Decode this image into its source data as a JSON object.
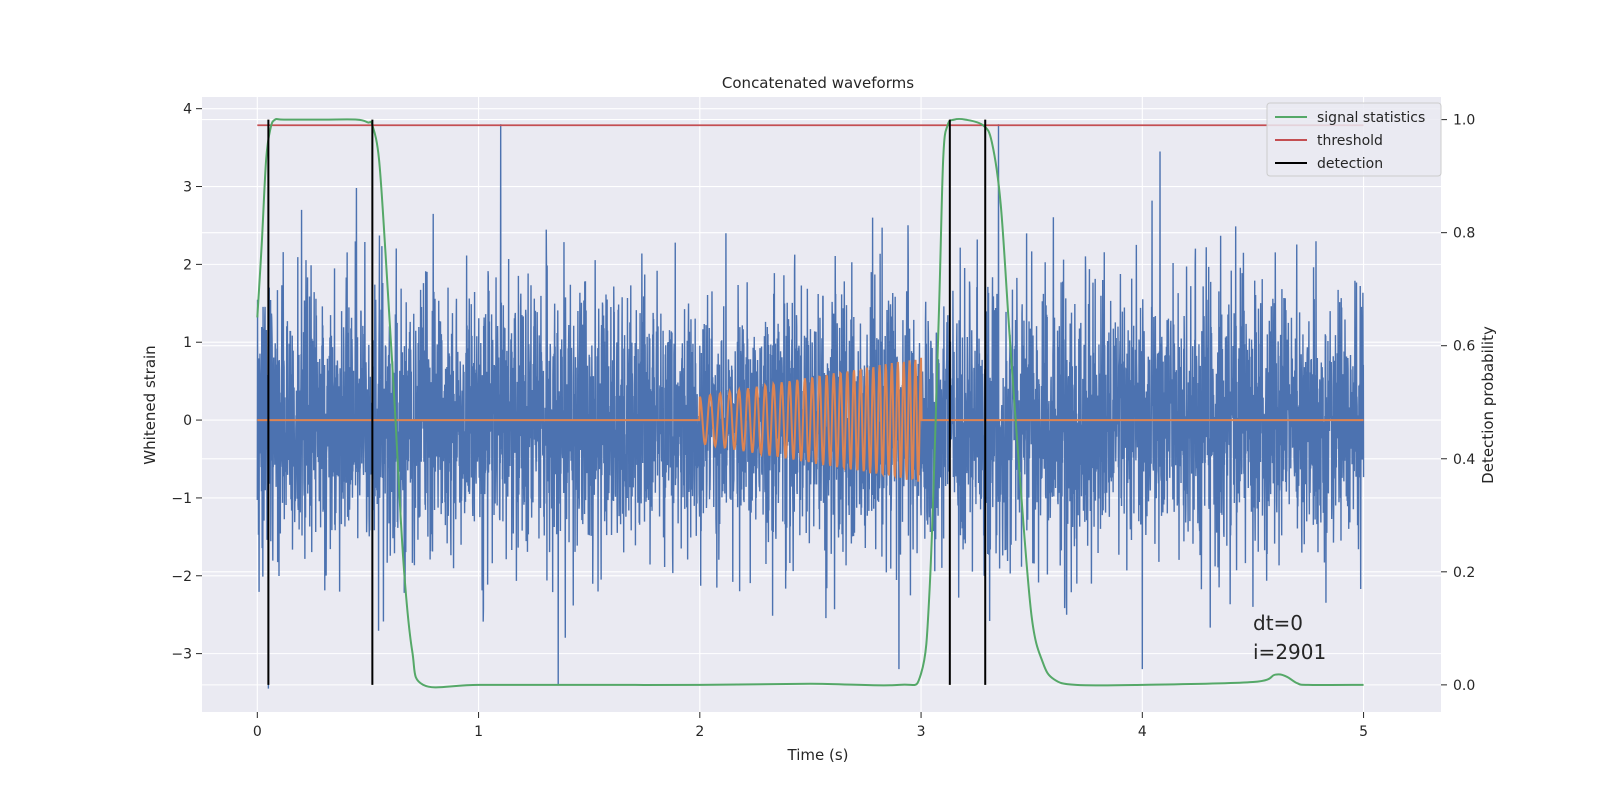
{
  "chart_data": {
    "type": "line",
    "title": "Concatenated waveforms",
    "xlabel": "Time (s)",
    "ylabel_left": "Whitened strain",
    "ylabel_right": "Detection probability",
    "xlim": [
      -0.25,
      5.35
    ],
    "ylim_left": [
      -3.75,
      4.15
    ],
    "ylim_right": [
      -0.048,
      1.04
    ],
    "x_ticks": [
      0,
      1,
      2,
      3,
      4,
      5
    ],
    "x_tick_labels": [
      "0",
      "1",
      "2",
      "3",
      "4",
      "5"
    ],
    "y_left_ticks": [
      -3,
      -2,
      -1,
      0,
      1,
      2,
      3,
      4
    ],
    "y_left_tick_labels": [
      "−3",
      "−2",
      "−1",
      "0",
      "1",
      "2",
      "3",
      "4"
    ],
    "y_right_ticks": [
      0.0,
      0.2,
      0.4,
      0.6,
      0.8,
      1.0
    ],
    "y_right_tick_labels": [
      "0.0",
      "0.2",
      "0.4",
      "0.6",
      "0.8",
      "1.0"
    ],
    "grid": true,
    "legend_position": "top-right",
    "series": [
      {
        "name": "",
        "role": "whitened strain noise",
        "axis": "left",
        "color": "#4c72b0",
        "x_range": [
          0,
          5
        ],
        "typical_std": 0.85,
        "peaks": [
          {
            "x": 1.1,
            "y": 3.8
          },
          {
            "x": 3.35,
            "y": 3.8
          },
          {
            "x": 4.08,
            "y": 3.45
          },
          {
            "x": 0.05,
            "y": -3.45
          },
          {
            "x": 1.36,
            "y": -3.4
          },
          {
            "x": 2.9,
            "y": -3.2
          },
          {
            "x": 4.0,
            "y": -3.2
          },
          {
            "x": 0.2,
            "y": 2.7
          },
          {
            "x": 4.5,
            "y": -2.4
          }
        ]
      },
      {
        "name": "",
        "role": "injected chirp",
        "axis": "left",
        "color": "#dd8452",
        "x": [
          0,
          2,
          2.5,
          3,
          5
        ],
        "envelope": [
          0,
          0.3,
          0.55,
          0.8,
          0
        ],
        "chirp_start": 2.0,
        "chirp_end": 3.0,
        "cycles_approx": 30
      },
      {
        "name": "signal statistics",
        "axis": "right",
        "color": "#55a868",
        "x": [
          0,
          0.02,
          0.04,
          0.06,
          0.08,
          0.12,
          0.3,
          0.45,
          0.5,
          0.52,
          0.55,
          0.58,
          0.62,
          0.66,
          0.7,
          0.75,
          1.0,
          1.5,
          2.0,
          2.5,
          2.9,
          3.0,
          3.04,
          3.08,
          3.1,
          3.12,
          3.15,
          3.2,
          3.28,
          3.32,
          3.36,
          3.4,
          3.45,
          3.5,
          3.55,
          3.6,
          3.7,
          4.0,
          4.5,
          4.6,
          4.65,
          4.7,
          4.75,
          5.0
        ],
        "values": [
          0.65,
          0.78,
          0.93,
          0.985,
          1.0,
          1.0,
          1.0,
          1.0,
          0.995,
          0.99,
          0.93,
          0.76,
          0.5,
          0.22,
          0.06,
          0.0,
          0.0,
          0.0,
          0.0,
          0.002,
          0.0,
          0.02,
          0.18,
          0.65,
          0.93,
          0.99,
          1.0,
          1.0,
          0.99,
          0.96,
          0.85,
          0.62,
          0.35,
          0.12,
          0.04,
          0.01,
          0.0,
          0.0,
          0.005,
          0.018,
          0.015,
          0.003,
          0.0,
          0.0
        ]
      },
      {
        "name": "threshold",
        "axis": "right",
        "color": "#c44e52",
        "x": [
          0,
          5
        ],
        "values": [
          0.99,
          0.99
        ]
      },
      {
        "name": "detection",
        "axis": "right",
        "color": "#000000",
        "vertical_lines_x": [
          0.05,
          0.52,
          3.13,
          3.29
        ],
        "y_range": [
          0.0,
          1.0
        ]
      }
    ],
    "annotations": [
      "dt=0",
      "i=2901"
    ],
    "annotation_x": 4.5,
    "annotation_y_left": [
      -2.58,
      -3.08
    ]
  }
}
